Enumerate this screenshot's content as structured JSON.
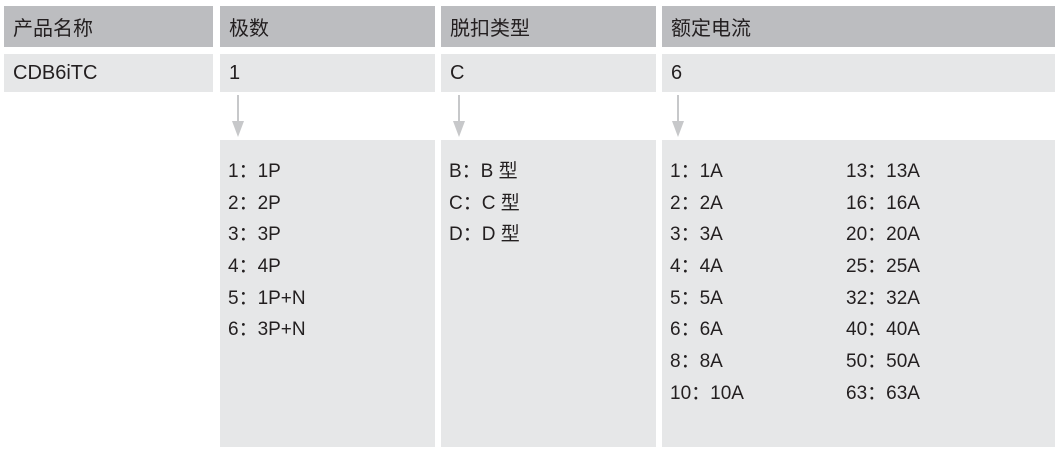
{
  "headers": [
    "产品名称",
    "极数",
    "脱扣类型",
    "额定电流"
  ],
  "values": [
    "CDB6iTC",
    "1",
    "C",
    "6"
  ],
  "poles": [
    "1：1P",
    "2：2P",
    "3：3P",
    "4：4P",
    "5：1P+N",
    "6：3P+N"
  ],
  "trip_types": [
    "B：B 型",
    "C：C 型",
    "D：D 型"
  ],
  "current_col1": [
    "1：1A",
    "2：2A",
    "3：3A",
    "4：4A",
    "5：5A",
    "6：6A",
    "8：8A",
    "10：10A"
  ],
  "current_col2": [
    "13：13A",
    "16：16A",
    "20：20A",
    "25：25A",
    "32：32A",
    "40：40A",
    "50：50A",
    "63：63A"
  ],
  "colors": {
    "header_bg": "#bcbdc0",
    "cell_bg": "#e6e7e8",
    "arrow": "#c7c8ca"
  },
  "icons": [
    "arrow-down-icon"
  ]
}
